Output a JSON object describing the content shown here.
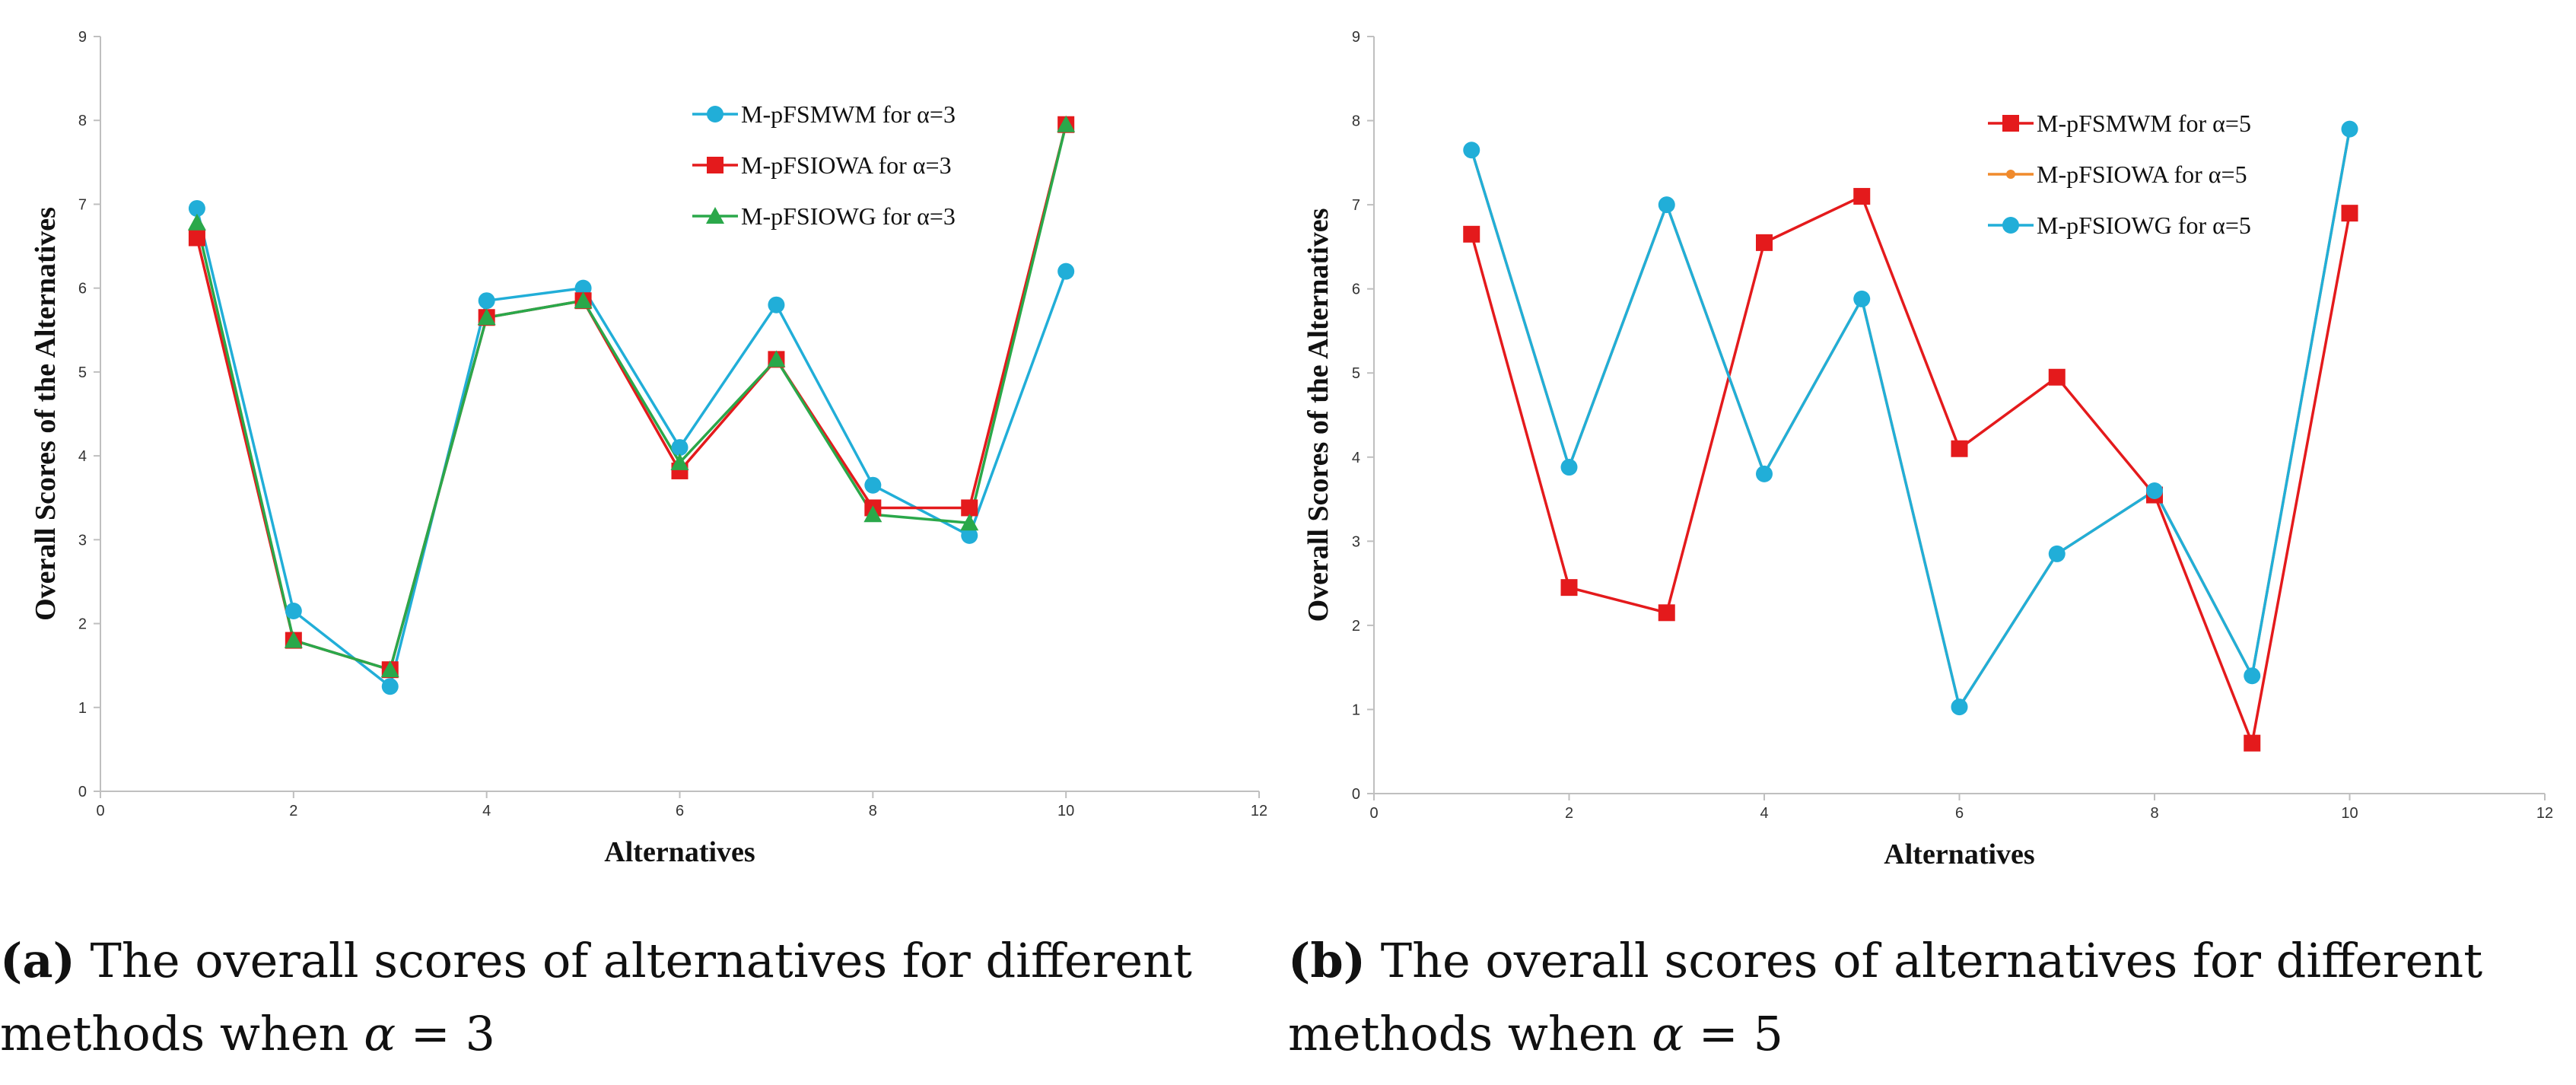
{
  "chart_data": [
    {
      "id": "a",
      "type": "line",
      "title": "",
      "xlabel": "Alternatives",
      "ylabel": "Overall Scores of the Alternatives",
      "xlim": [
        0,
        12
      ],
      "ylim": [
        0,
        9
      ],
      "xticks": [
        0,
        2,
        4,
        6,
        8,
        10,
        12
      ],
      "yticks": [
        0,
        1,
        2,
        3,
        4,
        5,
        6,
        7,
        8,
        9
      ],
      "grid": false,
      "legend_position": "top-right",
      "x": [
        1,
        2,
        3,
        4,
        5,
        6,
        7,
        8,
        9,
        10
      ],
      "series": [
        {
          "name": "M-pFSMWM for α=3",
          "color": "#21aed8",
          "marker": "circle",
          "values": [
            6.95,
            2.15,
            1.25,
            5.85,
            6.0,
            4.1,
            5.8,
            3.65,
            3.05,
            6.2
          ]
        },
        {
          "name": "M-pFSIOWA for α=3",
          "color": "#e41a1c",
          "marker": "square",
          "values": [
            6.6,
            1.8,
            1.45,
            5.65,
            5.85,
            3.82,
            5.15,
            3.38,
            3.38,
            7.95
          ]
        },
        {
          "name": "M-pFSIOWG for α=3",
          "color": "#2aa84a",
          "marker": "triangle",
          "values": [
            6.78,
            1.8,
            1.45,
            5.65,
            5.85,
            3.92,
            5.15,
            3.3,
            3.2,
            7.95
          ]
        }
      ]
    },
    {
      "id": "b",
      "type": "line",
      "title": "",
      "xlabel": "Alternatives",
      "ylabel": "Overall Scores of the Alternatives",
      "xlim": [
        0,
        12
      ],
      "ylim": [
        0,
        9
      ],
      "xticks": [
        0,
        2,
        4,
        6,
        8,
        10,
        12
      ],
      "yticks": [
        0,
        1,
        2,
        3,
        4,
        5,
        6,
        7,
        8,
        9
      ],
      "grid": false,
      "legend_position": "top-right",
      "x": [
        1,
        2,
        3,
        4,
        5,
        6,
        7,
        8,
        9,
        10
      ],
      "series": [
        {
          "name": "M-pFSMWM for α=5",
          "color": "#e41a1c",
          "marker": "square",
          "values": [
            6.65,
            2.45,
            2.15,
            6.55,
            7.1,
            4.1,
            4.95,
            3.55,
            0.6,
            6.9
          ]
        },
        {
          "name": "M-pFSIOWA for α=5",
          "color": "#f08a2c",
          "marker": "circle-small",
          "values": [
            7.65,
            3.88,
            7.0,
            3.8,
            5.88,
            1.03,
            2.85,
            3.6,
            1.4,
            7.9
          ]
        },
        {
          "name": "M-pFSIOWG for α=5",
          "color": "#21aed8",
          "marker": "circle",
          "values": [
            7.65,
            3.88,
            7.0,
            3.8,
            5.88,
            1.03,
            2.85,
            3.6,
            1.4,
            7.9
          ]
        }
      ]
    }
  ],
  "captions": [
    {
      "label": "(a)",
      "line1": " The overall scores of alternatives for different",
      "line2_prefix": "methods when ",
      "alpha_symbol": "α",
      "line2_suffix": " = 3"
    },
    {
      "label": "(b)",
      "line1": " The overall scores of alternatives for different",
      "line2_prefix": "methods when ",
      "alpha_symbol": "α",
      "line2_suffix": " = 5"
    }
  ],
  "colors": {
    "axis": "#bfbfbf",
    "tick_text": "#333333"
  }
}
